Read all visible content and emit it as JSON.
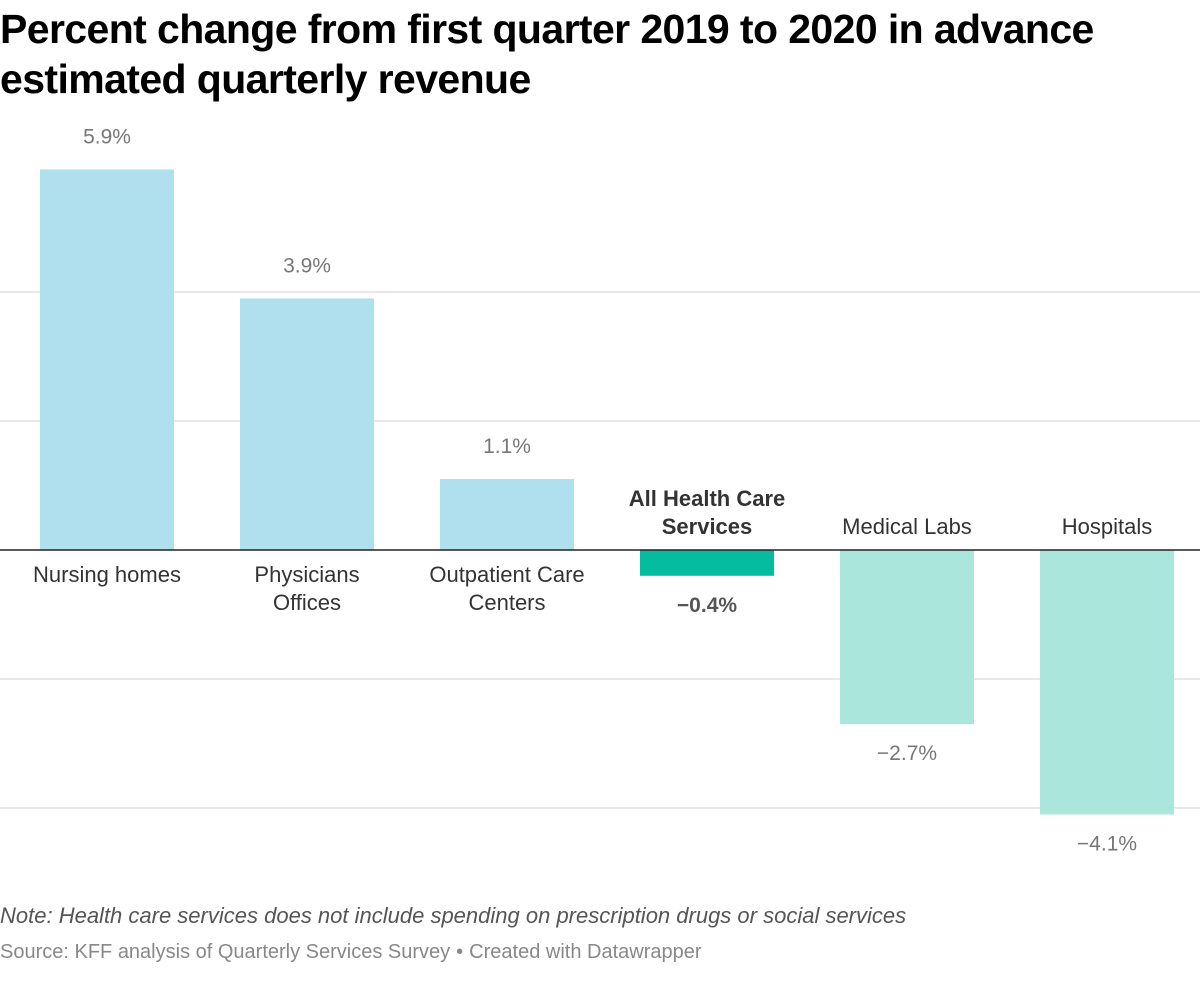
{
  "title": "Percent change from first quarter 2019 to 2020 in advance estimated quarterly revenue",
  "note": "Note: Health care services does not include spending on prescription drugs or social services",
  "source": {
    "text": "Source: KFF analysis of Quarterly Services Survey",
    "separator": "•",
    "credit": "Created with Datawrapper"
  },
  "chart_data": {
    "type": "bar",
    "title": "Percent change from first quarter 2019 to 2020 in advance estimated quarterly revenue",
    "xlabel": "",
    "ylabel": "",
    "grid": true,
    "categories": [
      {
        "label_lines": [
          "Nursing homes"
        ],
        "value": 5.9,
        "value_label": "5.9%",
        "highlight": false
      },
      {
        "label_lines": [
          "Physicians",
          "Offices"
        ],
        "value": 3.9,
        "value_label": "3.9%",
        "highlight": false
      },
      {
        "label_lines": [
          "Outpatient Care",
          "Centers"
        ],
        "value": 1.1,
        "value_label": "1.1%",
        "highlight": false
      },
      {
        "label_lines": [
          "All Health Care",
          "Services"
        ],
        "value": -0.4,
        "value_label": "−0.4%",
        "highlight": true
      },
      {
        "label_lines": [
          "Medical Labs"
        ],
        "value": -2.7,
        "value_label": "−2.7%",
        "highlight": false
      },
      {
        "label_lines": [
          "Hospitals"
        ],
        "value": -4.1,
        "value_label": "−4.1%",
        "highlight": false
      }
    ],
    "gridlines": [
      4,
      2,
      -2,
      -4
    ],
    "colors": {
      "positive": "#b0dfed",
      "negative": "#aae6db",
      "highlight": "#06bca0",
      "grid": "#e0e0e0",
      "baseline": "#222222"
    }
  }
}
